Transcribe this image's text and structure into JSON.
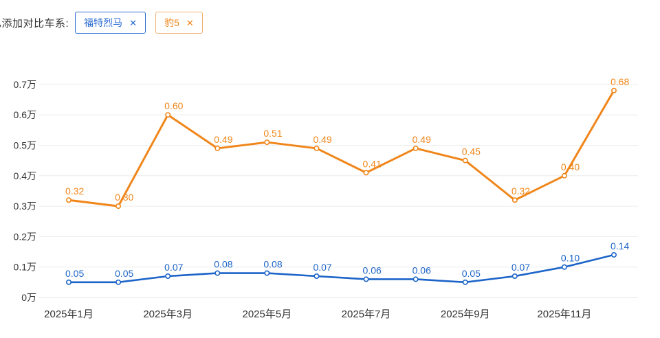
{
  "header": {
    "label": "已添加对比车系:",
    "tags": [
      {
        "label": "福特烈马",
        "close_icon": "✕",
        "color": "#2a6bd2"
      },
      {
        "label": "豹5",
        "close_icon": "✕",
        "color": "#f0861a"
      }
    ]
  },
  "colors": {
    "series_blue": "#1c64c8",
    "series_orange": "#f0861a",
    "axis_text": "#333333",
    "gridline": "#ececec"
  },
  "chart_data": {
    "type": "line",
    "title": "",
    "xlabel": "",
    "ylabel": "",
    "x_tick_labels": [
      "2025年1月",
      "2025年3月",
      "2025年5月",
      "2025年7月",
      "2025年9月",
      "2025年11月"
    ],
    "x_tick_point_indices": [
      0,
      2,
      4,
      6,
      8,
      10
    ],
    "num_points": 12,
    "series": [
      {
        "name": "福特烈马",
        "color": "#1c64c8",
        "values": [
          0.05,
          0.05,
          0.07,
          0.08,
          0.08,
          0.07,
          0.06,
          0.06,
          0.05,
          0.07,
          0.1,
          0.14
        ]
      },
      {
        "name": "豹5",
        "color": "#f0861a",
        "values": [
          0.32,
          0.3,
          0.6,
          0.49,
          0.51,
          0.49,
          0.41,
          0.49,
          0.45,
          0.32,
          0.4,
          0.68
        ]
      }
    ],
    "ylim": [
      0,
      0.7
    ],
    "ytick_step": 0.1,
    "ytick_suffix": "万",
    "grid": true,
    "legend_position": "none",
    "point_labels_visible": true,
    "label_decimals": 2
  }
}
